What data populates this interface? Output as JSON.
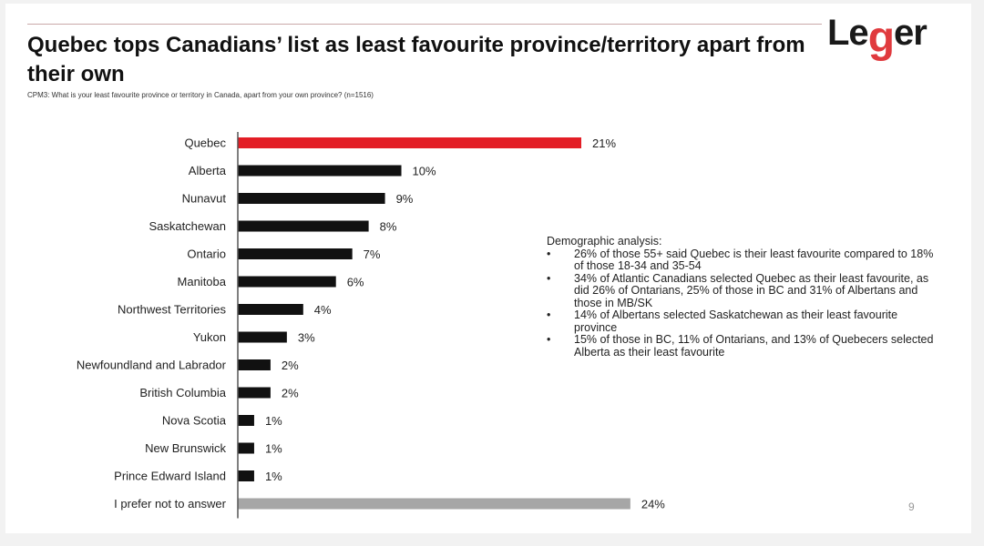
{
  "header": {
    "title": "Quebec tops Canadians’ list as least favourite province/territory apart from their own",
    "subtitle": "CPM3: What is your least favourite province or territory in Canada, apart from your own province? (n=1516)",
    "logo_text_before": "Le",
    "logo_text_g": "g",
    "logo_text_after": "er"
  },
  "notes": {
    "heading": "Demographic analysis:",
    "bullets": [
      "26% of those 55+ said Quebec is their least favourite compared to 18% of those 18-34 and 35-54",
      "34% of Atlantic Canadians selected Quebec as their least favourite, as did 26% of Ontarians, 25% of those in BC and 31% of Albertans and those in MB/SK",
      "14% of Albertans selected Saskatchewan as their least favourite province",
      "15% of those in BC, 11% of Ontarians, and 13% of Quebecers selected Alberta as their least favourite"
    ]
  },
  "page_number": "9",
  "colors": {
    "highlight": "#e31e26",
    "default": "#111111",
    "no_answer": "#a6a6a6"
  },
  "chart_data": {
    "type": "bar",
    "orientation": "horizontal",
    "categories": [
      "Quebec",
      "Alberta",
      "Nunavut",
      "Saskatchewan",
      "Ontario",
      "Manitoba",
      "Northwest Territories",
      "Yukon",
      "Newfoundland and Labrador",
      "British Columbia",
      "Nova Scotia",
      "New Brunswick",
      "Prince Edward Island",
      "I prefer not to answer"
    ],
    "values": [
      21,
      10,
      9,
      8,
      7,
      6,
      4,
      3,
      2,
      2,
      1,
      1,
      1,
      24
    ],
    "value_labels": [
      "21%",
      "10%",
      "9%",
      "8%",
      "7%",
      "6%",
      "4%",
      "3%",
      "2%",
      "2%",
      "1%",
      "1%",
      "1%",
      "24%"
    ],
    "bar_color_keys": [
      "highlight",
      "default",
      "default",
      "default",
      "default",
      "default",
      "default",
      "default",
      "default",
      "default",
      "default",
      "default",
      "default",
      "no_answer"
    ],
    "xlim": [
      0,
      24
    ],
    "grid": false,
    "legend": "none"
  }
}
